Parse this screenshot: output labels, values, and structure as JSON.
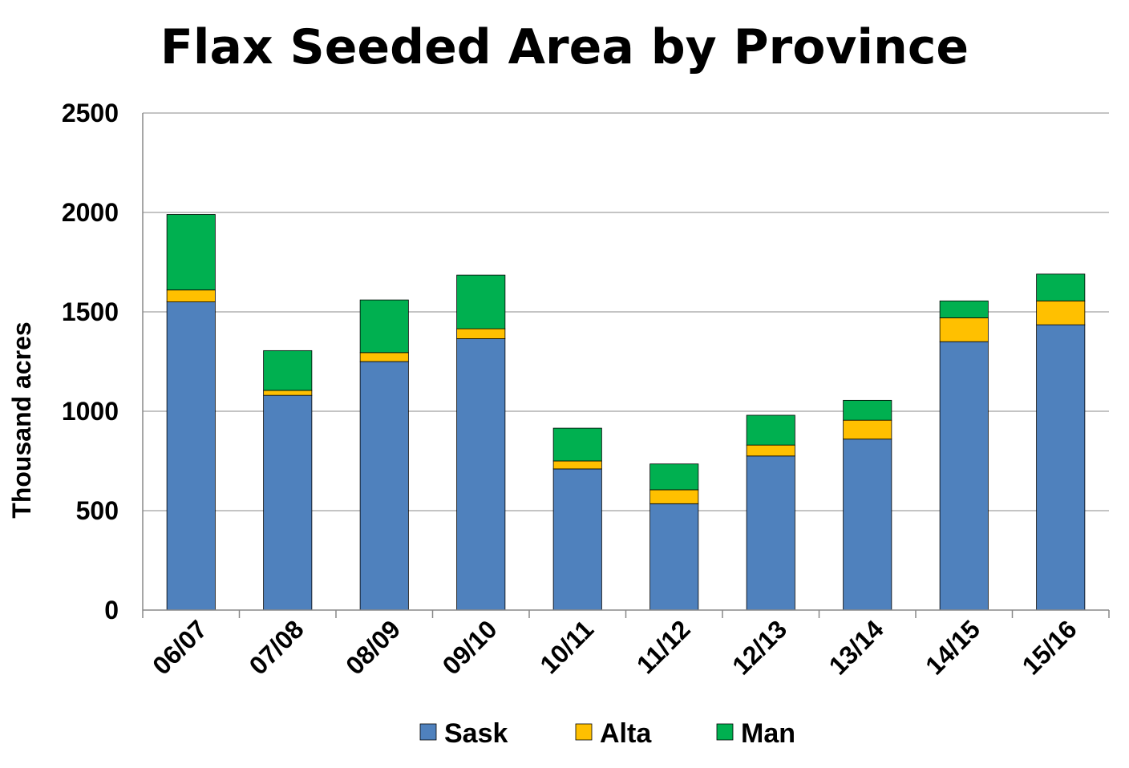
{
  "chart_data": {
    "type": "bar",
    "stacked": true,
    "title": "Flax Seeded Area by Province",
    "xlabel": "",
    "ylabel": "Thousand acres",
    "ylim": [
      0,
      2500
    ],
    "yticks": [
      0,
      500,
      1000,
      1500,
      2000,
      2500
    ],
    "grid": true,
    "legend_position": "bottom",
    "categories": [
      "06/07",
      "07/08",
      "08/09",
      "09/10",
      "10/11",
      "11/12",
      "12/13",
      "13/14",
      "14/15",
      "15/16"
    ],
    "series": [
      {
        "name": "Sask",
        "color": "#4F81BD",
        "values": [
          1550,
          1080,
          1250,
          1365,
          710,
          535,
          775,
          860,
          1350,
          1435
        ]
      },
      {
        "name": "Alta",
        "color": "#FFC000",
        "values": [
          60,
          25,
          45,
          50,
          40,
          70,
          55,
          95,
          120,
          120
        ]
      },
      {
        "name": "Man",
        "color": "#00B050",
        "values": [
          380,
          200,
          265,
          270,
          165,
          130,
          150,
          100,
          85,
          135
        ]
      }
    ]
  }
}
